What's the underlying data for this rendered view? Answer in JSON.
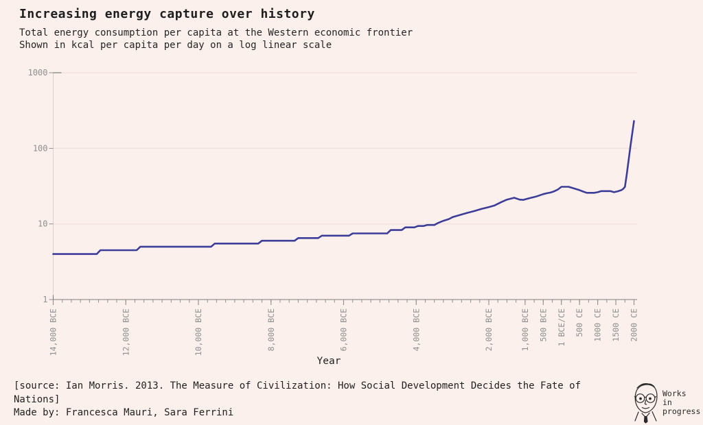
{
  "header": {
    "title": "Increasing energy capture over history",
    "subtitle_line1": "Total energy consumption per capita at the Western economic frontier",
    "subtitle_line2": "Shown in kcal per capita per day on a log linear scale"
  },
  "footer": {
    "source": "[source: Ian Morris. 2013. The Measure of Civilization: How Social Development Decides the Fate of Nations]",
    "made_by": "Made by: Francesca Mauri, Sara Ferrini",
    "logo": {
      "line1": "Works",
      "line2": "in",
      "line3": "progress"
    }
  },
  "colors": {
    "background": "#fbf0ec",
    "line": "#3c3c99",
    "grid": "#f2e1dc",
    "axis": "#8f8f8f",
    "axis_domain": "#7d7d7d",
    "y_axis_line": "#dcd0ca",
    "tick_label": "#8e8e8e",
    "text": "#1e1e1e"
  },
  "chart_data": {
    "type": "line",
    "title": "Increasing energy capture over history",
    "xlabel": "Year",
    "ylabel": "",
    "x_scale": "linear",
    "y_scale": "log",
    "ylim": [
      1,
      1000
    ],
    "xlim_years": [
      -14000,
      2000
    ],
    "grid": "horizontal-only",
    "legend": "none",
    "y_ticks": [
      {
        "value": 1,
        "label": "1"
      },
      {
        "value": 10,
        "label": "10"
      },
      {
        "value": 100,
        "label": "100"
      },
      {
        "value": 1000,
        "label": "1000"
      }
    ],
    "x_minor_tick_step_years": 250,
    "x_tick_labels": [
      {
        "year": -14000,
        "label": "14,000 BCE"
      },
      {
        "year": -12000,
        "label": "12,000 BCE"
      },
      {
        "year": -10000,
        "label": "10,000 BCE"
      },
      {
        "year": -8000,
        "label": "8,000 BCE"
      },
      {
        "year": -6000,
        "label": "6,000 BCE"
      },
      {
        "year": -4000,
        "label": "4,000 BCE"
      },
      {
        "year": -2000,
        "label": "2,000 BCE"
      },
      {
        "year": -1000,
        "label": "1,000 BCE"
      },
      {
        "year": -500,
        "label": "500 BCE"
      },
      {
        "year": 0,
        "label": "1 BCE/CE"
      },
      {
        "year": 500,
        "label": "500 CE"
      },
      {
        "year": 1000,
        "label": "1000 CE"
      },
      {
        "year": 1500,
        "label": "1500 CE"
      },
      {
        "year": 2000,
        "label": "2000 CE"
      }
    ],
    "series": [
      {
        "name": "energy_capture_western_frontier",
        "units_as_plotted": "thousand kcal per capita per day",
        "points": [
          [
            -14000,
            4
          ],
          [
            -12800,
            4
          ],
          [
            -12700,
            4.5
          ],
          [
            -11700,
            4.5
          ],
          [
            -11600,
            5
          ],
          [
            -9650,
            5
          ],
          [
            -9550,
            5.5
          ],
          [
            -8350,
            5.5
          ],
          [
            -8250,
            6
          ],
          [
            -7350,
            6
          ],
          [
            -7250,
            6.5
          ],
          [
            -6700,
            6.5
          ],
          [
            -6600,
            7
          ],
          [
            -5850,
            7
          ],
          [
            -5750,
            7.5
          ],
          [
            -4800,
            7.5
          ],
          [
            -4700,
            8.3
          ],
          [
            -4400,
            8.3
          ],
          [
            -4300,
            9
          ],
          [
            -4050,
            9
          ],
          [
            -3950,
            9.4
          ],
          [
            -3800,
            9.4
          ],
          [
            -3700,
            9.7
          ],
          [
            -3500,
            9.7
          ],
          [
            -3400,
            10.3
          ],
          [
            -3250,
            11
          ],
          [
            -3100,
            11.6
          ],
          [
            -3000,
            12.3
          ],
          [
            -2600,
            14
          ],
          [
            -2400,
            14.8
          ],
          [
            -2200,
            15.8
          ],
          [
            -2000,
            16.7
          ],
          [
            -1850,
            17.5
          ],
          [
            -1650,
            19.5
          ],
          [
            -1500,
            21
          ],
          [
            -1300,
            22.2
          ],
          [
            -1150,
            21
          ],
          [
            -1050,
            20.8
          ],
          [
            -900,
            21.8
          ],
          [
            -700,
            23
          ],
          [
            -500,
            24.8
          ],
          [
            -400,
            25.5
          ],
          [
            -300,
            26
          ],
          [
            -200,
            27
          ],
          [
            -100,
            28.5
          ],
          [
            1,
            31
          ],
          [
            200,
            31
          ],
          [
            300,
            30
          ],
          [
            400,
            29
          ],
          [
            500,
            28
          ],
          [
            600,
            26.8
          ],
          [
            700,
            25.8
          ],
          [
            900,
            25.8
          ],
          [
            1000,
            26.3
          ],
          [
            1100,
            27.2
          ],
          [
            1350,
            27.2
          ],
          [
            1450,
            26.3
          ],
          [
            1550,
            27
          ],
          [
            1650,
            28
          ],
          [
            1700,
            29
          ],
          [
            1750,
            31
          ],
          [
            1800,
            45
          ],
          [
            1900,
            105
          ],
          [
            2000,
            230
          ]
        ]
      }
    ]
  }
}
